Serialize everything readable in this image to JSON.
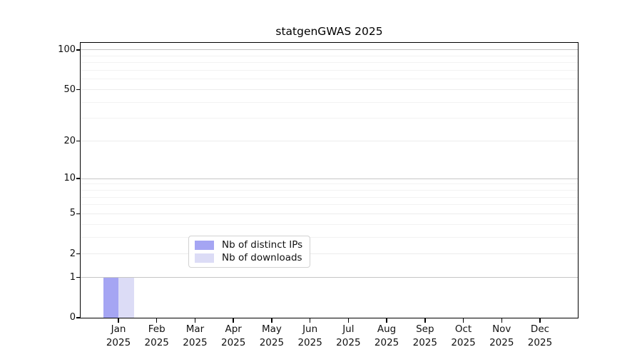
{
  "chart_data": {
    "type": "bar",
    "title": "statgenGWAS 2025",
    "xlabel": "",
    "ylabel": "",
    "months": [
      "Jan",
      "Feb",
      "Mar",
      "Apr",
      "May",
      "Jun",
      "Jul",
      "Aug",
      "Sep",
      "Oct",
      "Nov",
      "Dec"
    ],
    "year_label": "2025",
    "categories": [
      "Jan 2025",
      "Feb 2025",
      "Mar 2025",
      "Apr 2025",
      "May 2025",
      "Jun 2025",
      "Jul 2025",
      "Aug 2025",
      "Sep 2025",
      "Oct 2025",
      "Nov 2025",
      "Dec 2025"
    ],
    "series": [
      {
        "name": "Nb of distinct IPs",
        "color": "#a5a5f3",
        "values": [
          1,
          0,
          0,
          0,
          0,
          0,
          0,
          0,
          0,
          0,
          0,
          0
        ]
      },
      {
        "name": "Nb of downloads",
        "color": "#dcdcf6",
        "values": [
          1,
          0,
          0,
          0,
          0,
          0,
          0,
          0,
          0,
          0,
          0,
          0
        ]
      }
    ],
    "yscale": "log1p",
    "ylim": [
      0,
      113
    ],
    "yticks": [
      0,
      1,
      2,
      5,
      10,
      20,
      50,
      100
    ],
    "major_gridlines": [
      1,
      10,
      100
    ],
    "minor_gridlines": [
      3,
      4,
      6,
      7,
      8,
      9,
      30,
      40,
      60,
      70,
      80,
      90
    ],
    "grid": "horizontal",
    "legend_position": "inside-bottom-center",
    "axis_color": "#000000",
    "background_color": "#ffffff"
  }
}
